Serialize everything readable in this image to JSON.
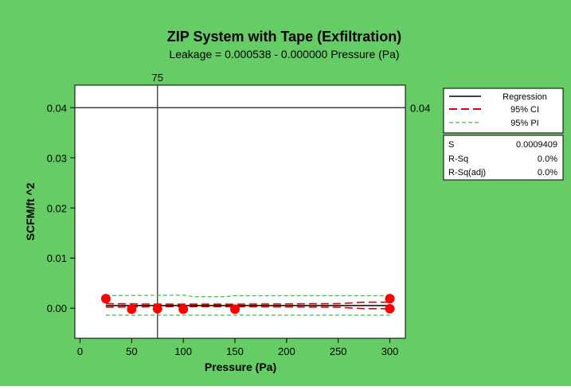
{
  "colors": {
    "background": "#66cc66",
    "plot_background": "#ffffff",
    "regression": "#000000",
    "ci": "#e00000",
    "pi": "#44bb44",
    "points": "#ff0000",
    "reference_line": "#333333"
  },
  "chart_data": {
    "type": "scatter",
    "title": "ZIP System with Tape (Exfiltration)",
    "subtitle": "Leakage =  0.000538 - 0.000000 Pressure (Pa)",
    "xlabel": "Pressure (Pa)",
    "ylabel": "SCFM/ft ^2",
    "xlim": [
      -5,
      315
    ],
    "ylim": [
      -0.006,
      0.0445
    ],
    "x_ticks": [
      0,
      50,
      100,
      150,
      200,
      250,
      300
    ],
    "x_tick_labels": [
      "0",
      "50",
      "100",
      "150",
      "200",
      "250",
      "300"
    ],
    "y_ticks": [
      0.0,
      0.01,
      0.02,
      0.03,
      0.04
    ],
    "y_tick_labels": [
      "0.00",
      "0.01",
      "0.02",
      "0.03",
      "0.04"
    ],
    "grid": false,
    "legend_position": "right",
    "reference_lines": {
      "vertical": {
        "x": 75,
        "label": "75"
      },
      "horizontal": {
        "y": 0.04,
        "label": "0.04"
      }
    },
    "points": {
      "x": [
        25,
        50,
        75,
        100,
        150,
        300,
        300
      ],
      "y": [
        0.0019,
        -0.0002,
        -0.0001,
        -0.0002,
        -0.0002,
        0.0019,
        -0.0001
      ]
    },
    "regression": {
      "x": [
        25,
        300
      ],
      "y": [
        0.000538,
        0.000538
      ]
    },
    "ci_upper": {
      "x": [
        25,
        75,
        150,
        250,
        275,
        300
      ],
      "y": [
        0.0009,
        0.0008,
        0.0008,
        0.0009,
        0.0012,
        0.0012
      ]
    },
    "ci_lower": {
      "x": [
        25,
        75,
        150,
        250,
        275,
        300
      ],
      "y": [
        0.0002,
        0.0003,
        0.0003,
        0.0002,
        -0.0001,
        -0.0001
      ]
    },
    "pi_upper": {
      "x": [
        25,
        100,
        110,
        140,
        150,
        300
      ],
      "y": [
        0.0025,
        0.0026,
        0.0023,
        0.0023,
        0.0025,
        0.0025
      ]
    },
    "pi_lower": {
      "x": [
        25,
        300
      ],
      "y": [
        -0.0014,
        -0.0014
      ]
    },
    "legend": [
      {
        "label": "Regression",
        "style": "solid"
      },
      {
        "label": "95% CI",
        "style": "dashed"
      },
      {
        "label": "95% PI",
        "style": "dotted"
      }
    ],
    "stats": [
      {
        "label": "S",
        "value": "0.0009409"
      },
      {
        "label": "R-Sq",
        "value": "0.0%"
      },
      {
        "label": "R-Sq(adj)",
        "value": "0.0%"
      }
    ]
  }
}
